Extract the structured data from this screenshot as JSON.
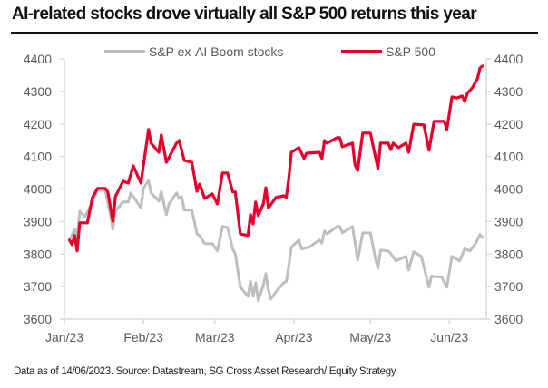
{
  "title": "AI-related stocks drove virtually all S&P 500 returns this year",
  "footer": "Data as of 14/06/2023. Source: Datastream, SG Cross Asset Research/ Equity Strategy",
  "chart_data": {
    "type": "line",
    "title": "AI-related stocks drove virtually all S&P 500 returns this year",
    "xlabel": "",
    "ylabel": "",
    "ylim": [
      3600,
      4400
    ],
    "xlim": [
      "2023-01-01",
      "2023-06-14"
    ],
    "y_ticks": [
      "3600",
      "3700",
      "3800",
      "3900",
      "4000",
      "4100",
      "4200",
      "4300",
      "4400"
    ],
    "y_axis_both_sides": true,
    "x_ticks": [
      {
        "date": "2023-01-01",
        "label": "Jan/23"
      },
      {
        "date": "2023-02-01",
        "label": "Feb/23"
      },
      {
        "date": "2023-03-01",
        "label": "Mar/23"
      },
      {
        "date": "2023-04-01",
        "label": "Apr/23"
      },
      {
        "date": "2023-05-01",
        "label": "May/23"
      },
      {
        "date": "2023-06-01",
        "label": "Jun/23"
      }
    ],
    "grid": false,
    "legend_position": "top",
    "series": [
      {
        "name": "S&P ex-AI Boom stocks",
        "color": "#c0bdbd",
        "points": [
          [
            "2023-01-03",
            3843
          ],
          [
            "2023-01-05",
            3876
          ],
          [
            "2023-01-06",
            3851
          ],
          [
            "2023-01-07",
            3932
          ],
          [
            "2023-01-09",
            3915
          ],
          [
            "2023-01-12",
            3960
          ],
          [
            "2023-01-14",
            3996
          ],
          [
            "2023-01-17",
            3996
          ],
          [
            "2023-01-19",
            3921
          ],
          [
            "2023-01-20",
            3876
          ],
          [
            "2023-01-21",
            3932
          ],
          [
            "2023-01-24",
            3960
          ],
          [
            "2023-01-26",
            3960
          ],
          [
            "2023-01-27",
            3988
          ],
          [
            "2023-01-31",
            3942
          ],
          [
            "2023-02-01",
            4002
          ],
          [
            "2023-02-03",
            4027
          ],
          [
            "2023-02-04",
            3988
          ],
          [
            "2023-02-07",
            3963
          ],
          [
            "2023-02-08",
            3991
          ],
          [
            "2023-02-10",
            3921
          ],
          [
            "2023-02-11",
            3954
          ],
          [
            "2023-02-14",
            3988
          ],
          [
            "2023-02-15",
            3971
          ],
          [
            "2023-02-16",
            3977
          ],
          [
            "2023-02-17",
            3935
          ],
          [
            "2023-02-20",
            3935
          ],
          [
            "2023-02-22",
            3862
          ],
          [
            "2023-02-23",
            3857
          ],
          [
            "2023-02-25",
            3832
          ],
          [
            "2023-02-28",
            3832
          ],
          [
            "2023-03-02",
            3810
          ],
          [
            "2023-03-04",
            3885
          ],
          [
            "2023-03-06",
            3882
          ],
          [
            "2023-03-08",
            3816
          ],
          [
            "2023-03-09",
            3801
          ],
          [
            "2023-03-11",
            3698
          ],
          [
            "2023-03-14",
            3670
          ],
          [
            "2023-03-15",
            3717
          ],
          [
            "2023-03-16",
            3670
          ],
          [
            "2023-03-17",
            3712
          ],
          [
            "2023-03-18",
            3656
          ],
          [
            "2023-03-20",
            3704
          ],
          [
            "2023-03-21",
            3740
          ],
          [
            "2023-03-22",
            3690
          ],
          [
            "2023-03-23",
            3662
          ],
          [
            "2023-03-25",
            3684
          ],
          [
            "2023-03-28",
            3712
          ],
          [
            "2023-03-29",
            3715
          ],
          [
            "2023-03-30",
            3765
          ],
          [
            "2023-03-31",
            3821
          ],
          [
            "2023-04-03",
            3843
          ],
          [
            "2023-04-04",
            3816
          ],
          [
            "2023-04-07",
            3821
          ],
          [
            "2023-04-11",
            3843
          ],
          [
            "2023-04-12",
            3834
          ],
          [
            "2023-04-13",
            3871
          ],
          [
            "2023-04-14",
            3862
          ],
          [
            "2023-04-18",
            3885
          ],
          [
            "2023-04-19",
            3885
          ],
          [
            "2023-04-20",
            3865
          ],
          [
            "2023-04-24",
            3885
          ],
          [
            "2023-04-26",
            3782
          ],
          [
            "2023-04-28",
            3865
          ],
          [
            "2023-05-01",
            3865
          ],
          [
            "2023-05-03",
            3787
          ],
          [
            "2023-05-04",
            3757
          ],
          [
            "2023-05-05",
            3812
          ],
          [
            "2023-05-08",
            3810
          ],
          [
            "2023-05-09",
            3801
          ],
          [
            "2023-05-11",
            3779
          ],
          [
            "2023-05-15",
            3793
          ],
          [
            "2023-05-16",
            3751
          ],
          [
            "2023-05-18",
            3807
          ],
          [
            "2023-05-21",
            3793
          ],
          [
            "2023-05-24",
            3698
          ],
          [
            "2023-05-25",
            3732
          ],
          [
            "2023-05-29",
            3729
          ],
          [
            "2023-05-31",
            3698
          ],
          [
            "2023-06-02",
            3793
          ],
          [
            "2023-06-05",
            3779
          ],
          [
            "2023-06-07",
            3816
          ],
          [
            "2023-06-09",
            3810
          ],
          [
            "2023-06-11",
            3829
          ],
          [
            "2023-06-13",
            3860
          ],
          [
            "2023-06-14",
            3851
          ]
        ]
      },
      {
        "name": "S&P 500",
        "color": "#e4002b",
        "points": [
          [
            "2023-01-03",
            3843
          ],
          [
            "2023-01-04",
            3829
          ],
          [
            "2023-01-05",
            3857
          ],
          [
            "2023-01-06",
            3810
          ],
          [
            "2023-01-07",
            3896
          ],
          [
            "2023-01-10",
            3896
          ],
          [
            "2023-01-12",
            3974
          ],
          [
            "2023-01-14",
            4002
          ],
          [
            "2023-01-17",
            4002
          ],
          [
            "2023-01-18",
            3991
          ],
          [
            "2023-01-20",
            3901
          ],
          [
            "2023-01-21",
            3977
          ],
          [
            "2023-01-24",
            4024
          ],
          [
            "2023-01-26",
            4018
          ],
          [
            "2023-01-28",
            4071
          ],
          [
            "2023-01-31",
            4018
          ],
          [
            "2023-02-03",
            4183
          ],
          [
            "2023-02-04",
            4141
          ],
          [
            "2023-02-07",
            4113
          ],
          [
            "2023-02-08",
            4166
          ],
          [
            "2023-02-10",
            4082
          ],
          [
            "2023-02-14",
            4141
          ],
          [
            "2023-02-15",
            4149
          ],
          [
            "2023-02-17",
            4088
          ],
          [
            "2023-02-20",
            4082
          ],
          [
            "2023-02-22",
            3993
          ],
          [
            "2023-02-23",
            4015
          ],
          [
            "2023-02-25",
            3971
          ],
          [
            "2023-02-28",
            3985
          ],
          [
            "2023-03-02",
            3954
          ],
          [
            "2023-03-04",
            4049
          ],
          [
            "2023-03-06",
            4049
          ],
          [
            "2023-03-08",
            3991
          ],
          [
            "2023-03-09",
            3991
          ],
          [
            "2023-03-11",
            3862
          ],
          [
            "2023-03-14",
            3857
          ],
          [
            "2023-03-15",
            3921
          ],
          [
            "2023-03-16",
            3893
          ],
          [
            "2023-03-17",
            3960
          ],
          [
            "2023-03-18",
            3918
          ],
          [
            "2023-03-20",
            3954
          ],
          [
            "2023-03-21",
            4004
          ],
          [
            "2023-03-22",
            3942
          ],
          [
            "2023-03-25",
            3974
          ],
          [
            "2023-03-28",
            3979
          ],
          [
            "2023-03-29",
            3974
          ],
          [
            "2023-03-30",
            4032
          ],
          [
            "2023-03-31",
            4113
          ],
          [
            "2023-04-03",
            4127
          ],
          [
            "2023-04-05",
            4094
          ],
          [
            "2023-04-06",
            4110
          ],
          [
            "2023-04-11",
            4113
          ],
          [
            "2023-04-12",
            4094
          ],
          [
            "2023-04-13",
            4149
          ],
          [
            "2023-04-14",
            4141
          ],
          [
            "2023-04-18",
            4158
          ],
          [
            "2023-04-19",
            4158
          ],
          [
            "2023-04-20",
            4130
          ],
          [
            "2023-04-24",
            4141
          ],
          [
            "2023-04-25",
            4074
          ],
          [
            "2023-04-26",
            4057
          ],
          [
            "2023-04-28",
            4172
          ],
          [
            "2023-05-01",
            4172
          ],
          [
            "2023-05-03",
            4099
          ],
          [
            "2023-05-04",
            4063
          ],
          [
            "2023-05-05",
            4141
          ],
          [
            "2023-05-08",
            4141
          ],
          [
            "2023-05-09",
            4121
          ],
          [
            "2023-05-10",
            4141
          ],
          [
            "2023-05-12",
            4127
          ],
          [
            "2023-05-15",
            4141
          ],
          [
            "2023-05-16",
            4113
          ],
          [
            "2023-05-18",
            4199
          ],
          [
            "2023-05-22",
            4197
          ],
          [
            "2023-05-24",
            4119
          ],
          [
            "2023-05-26",
            4208
          ],
          [
            "2023-05-30",
            4208
          ],
          [
            "2023-05-31",
            4183
          ],
          [
            "2023-06-02",
            4283
          ],
          [
            "2023-06-04",
            4280
          ],
          [
            "2023-06-06",
            4286
          ],
          [
            "2023-06-07",
            4269
          ],
          [
            "2023-06-08",
            4294
          ],
          [
            "2023-06-10",
            4311
          ],
          [
            "2023-06-12",
            4339
          ],
          [
            "2023-06-13",
            4372
          ],
          [
            "2023-06-14",
            4378
          ]
        ]
      }
    ]
  }
}
